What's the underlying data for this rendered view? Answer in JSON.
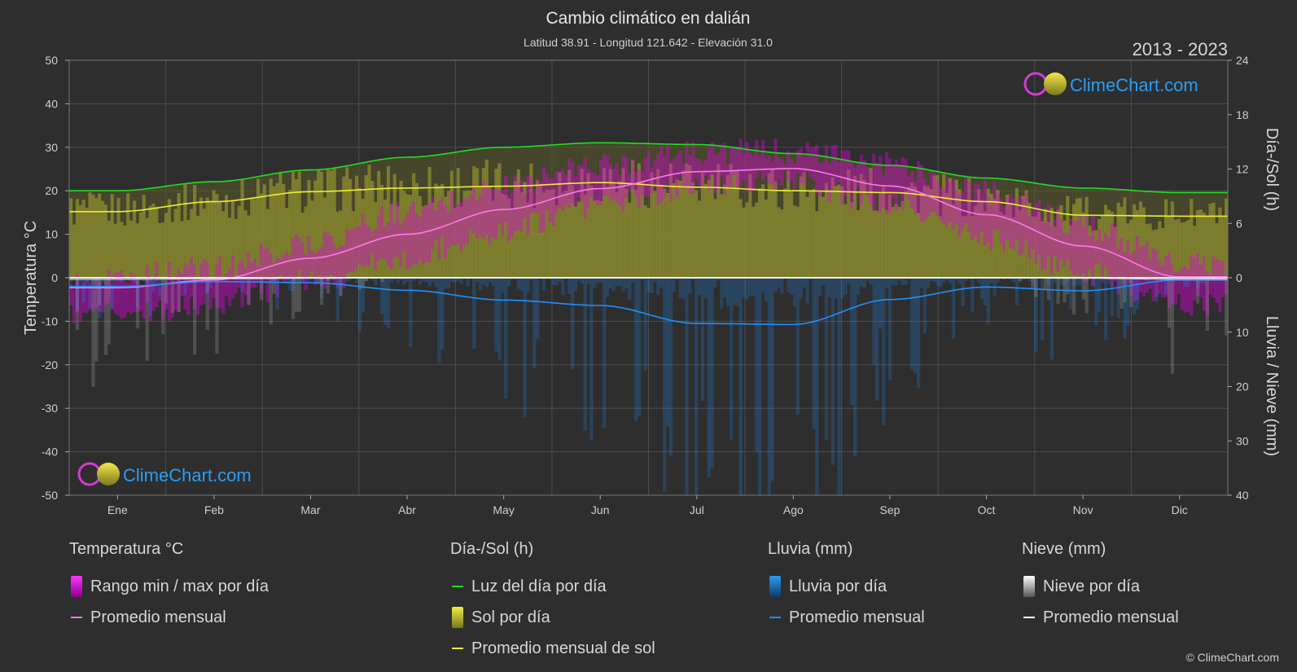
{
  "title": "Cambio climático en dalián",
  "subtitle": "Latitud 38.91 - Longitud 121.642 - Elevación 31.0",
  "year_range": "2013 - 2023",
  "brand": "ClimeChart.com",
  "copyright": "© ClimeChart.com",
  "colors": {
    "background": "#2e2e2e",
    "temp_avg": "#ff77ee",
    "temp_range": "#e000e0",
    "daylight": "#22dd22",
    "sun_avg": "#eeee33",
    "sun_fill": "#a8a832",
    "rain": "#1e90ff",
    "snow": "#ffffff"
  },
  "chart_data": {
    "type": "area",
    "categories": [
      "Ene",
      "Feb",
      "Mar",
      "Abr",
      "May",
      "Jun",
      "Jul",
      "Ago",
      "Sep",
      "Oct",
      "Nov",
      "Dic"
    ],
    "left_axis": {
      "label": "Temperatura °C",
      "min": -50,
      "max": 50,
      "ticks": [
        50,
        40,
        30,
        20,
        10,
        0,
        -10,
        -20,
        -30,
        -40,
        -50
      ]
    },
    "right_axis_top": {
      "label": "Día-/Sol (h)",
      "min": 0,
      "max": 24,
      "ticks": [
        24,
        18,
        12,
        6,
        0
      ]
    },
    "right_axis_bottom": {
      "label": "Lluvia / Nieve (mm)",
      "min": 0,
      "max": 40,
      "ticks": [
        0,
        10,
        20,
        30,
        40
      ]
    },
    "series": [
      {
        "name": "Luz del día por día",
        "axis": "hours",
        "values": [
          9.6,
          10.6,
          11.9,
          13.3,
          14.4,
          14.9,
          14.7,
          13.7,
          12.4,
          11.0,
          9.9,
          9.4
        ]
      },
      {
        "name": "Promedio mensual de sol",
        "axis": "hours",
        "values": [
          7.3,
          8.4,
          9.5,
          9.9,
          10.1,
          10.5,
          10.0,
          9.6,
          9.4,
          8.4,
          6.9,
          6.8
        ]
      },
      {
        "name": "Promedio mensual",
        "axis": "temperature",
        "values": [
          -2.3,
          -0.5,
          4.5,
          10.0,
          15.7,
          20.5,
          24.4,
          25.1,
          21.1,
          14.5,
          7.3,
          0.2
        ]
      },
      {
        "name": "Lluvia promedio mensual",
        "axis": "precip",
        "values": [
          1.6,
          0.7,
          0.9,
          2.3,
          4.1,
          5.1,
          8.4,
          8.6,
          4.0,
          1.7,
          2.4,
          0.4
        ]
      },
      {
        "name": "Nieve promedio mensual",
        "axis": "precip",
        "values": [
          0.3,
          0.2,
          0.1,
          0,
          0,
          0,
          0,
          0,
          0,
          0,
          0.1,
          0.3
        ]
      }
    ],
    "temp_range_max": [
      0,
      2,
      8,
      15,
      21,
      26,
      29,
      29,
      26,
      20,
      12,
      3
    ],
    "temp_range_min": [
      -8,
      -6,
      -1,
      5,
      11,
      17,
      21,
      22,
      17,
      9,
      1,
      -6
    ]
  },
  "legend": [
    {
      "heading": "Temperatura °C",
      "items": [
        {
          "label": "Rango min / max por día",
          "swatch": "box",
          "color": "#e000e0"
        },
        {
          "label": "Promedio mensual",
          "swatch": "line",
          "color": "#ff77ee"
        }
      ]
    },
    {
      "heading": "Día-/Sol (h)",
      "items": [
        {
          "label": "Luz del día por día",
          "swatch": "line",
          "color": "#22dd22"
        },
        {
          "label": "Sol por día",
          "swatch": "box",
          "color": "#d4d433"
        },
        {
          "label": "Promedio mensual de sol",
          "swatch": "line",
          "color": "#eeee33"
        }
      ]
    },
    {
      "heading": "Lluvia (mm)",
      "items": [
        {
          "label": "Lluvia por día",
          "swatch": "box",
          "color": "#1e90ff"
        },
        {
          "label": "Promedio mensual",
          "swatch": "line",
          "color": "#1e90ff"
        }
      ]
    },
    {
      "heading": "Nieve (mm)",
      "items": [
        {
          "label": "Nieve por día",
          "swatch": "box",
          "color": "#ffffff"
        },
        {
          "label": "Promedio mensual",
          "swatch": "line",
          "color": "#ffffff"
        }
      ]
    }
  ]
}
